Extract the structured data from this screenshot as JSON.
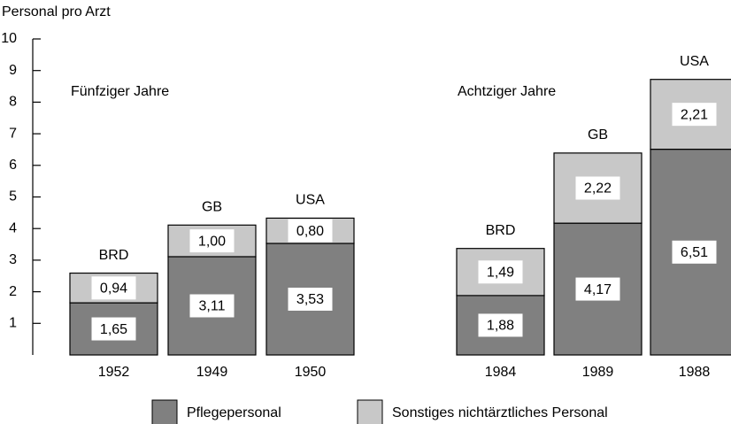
{
  "chart_data": {
    "type": "stacked_bar",
    "y_label": "Personal pro Arzt",
    "categories": [
      "1952",
      "1949",
      "1950",
      "1984",
      "1989",
      "1988"
    ],
    "countries": [
      "BRD",
      "GB",
      "USA",
      "BRD",
      "GB",
      "USA"
    ],
    "group_labels": [
      "Fünfziger Jahre",
      "Achtziger Jahre"
    ],
    "series": [
      {
        "name": "Pflegepersonal",
        "color": "#808080",
        "values": [
          1.65,
          3.11,
          3.53,
          1.88,
          4.17,
          6.51
        ],
        "value_labels": [
          "1,65",
          "3,11",
          "3,53",
          "1,88",
          "4,17",
          "6,51"
        ]
      },
      {
        "name": "Sonstiges nichtärztliches Personal",
        "color": "#c8c8c8",
        "values": [
          0.94,
          1.0,
          0.8,
          1.49,
          2.22,
          2.21
        ],
        "value_labels": [
          "0,94",
          "1,00",
          "0,80",
          "1,49",
          "2,22",
          "2,21"
        ]
      }
    ],
    "ylim": [
      0,
      10
    ],
    "yticks": [
      1,
      2,
      3,
      4,
      5,
      6,
      7,
      8,
      9,
      10
    ]
  }
}
